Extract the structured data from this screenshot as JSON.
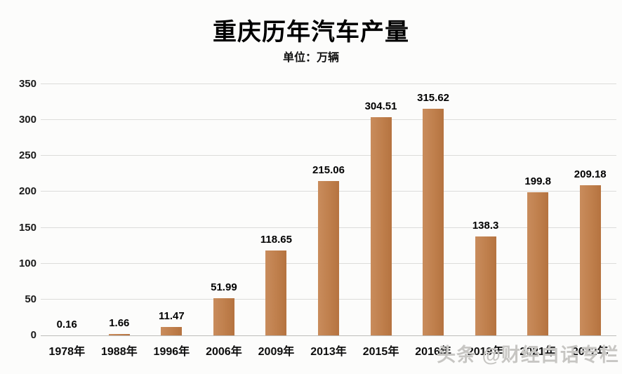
{
  "title": "重庆历年汽车产量",
  "subtitle": "单位：万辆",
  "watermark": "头条 @财经白话专栏",
  "chart_data": {
    "type": "bar",
    "title": "重庆历年汽车产量",
    "subtitle": "单位：万辆",
    "categories": [
      "1978年",
      "1988年",
      "1996年",
      "2006年",
      "2009年",
      "2013年",
      "2015年",
      "2016年",
      "2019年",
      "2021年",
      "2022年"
    ],
    "values": [
      0.16,
      1.66,
      11.47,
      51.99,
      118.65,
      215.06,
      304.51,
      315.62,
      138.3,
      199.8,
      209.18
    ],
    "value_labels": [
      "0.16",
      "1.66",
      "11.47",
      "51.99",
      "118.65",
      "215.06",
      "304.51",
      "315.62",
      "138.3",
      "199.8",
      "209.18"
    ],
    "xlabel": "",
    "ylabel": "",
    "ylim": [
      0,
      350
    ],
    "yticks": [
      0,
      50,
      100,
      150,
      200,
      250,
      300,
      350
    ],
    "grid": true,
    "legend_position": "none",
    "bar_color": "#bf7f4c",
    "gridline_color": "#dcdcda",
    "note": "last x-axis labels partially covered by watermark"
  }
}
